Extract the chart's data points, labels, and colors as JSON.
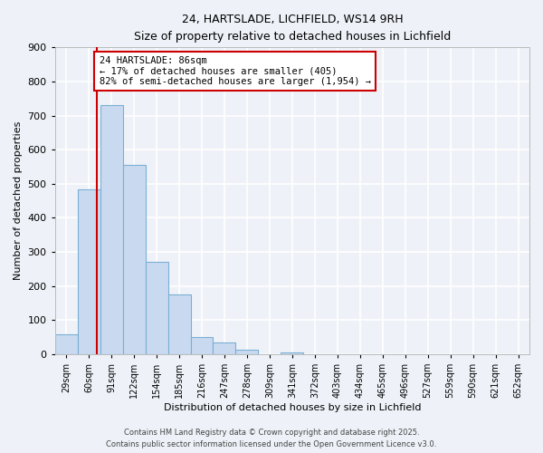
{
  "title": "24, HARTSLADE, LICHFIELD, WS14 9RH",
  "subtitle": "Size of property relative to detached houses in Lichfield",
  "xlabel": "Distribution of detached houses by size in Lichfield",
  "ylabel": "Number of detached properties",
  "bin_labels": [
    "29sqm",
    "60sqm",
    "91sqm",
    "122sqm",
    "154sqm",
    "185sqm",
    "216sqm",
    "247sqm",
    "278sqm",
    "309sqm",
    "341sqm",
    "372sqm",
    "403sqm",
    "434sqm",
    "465sqm",
    "496sqm",
    "527sqm",
    "559sqm",
    "590sqm",
    "621sqm",
    "652sqm"
  ],
  "bar_values": [
    57,
    484,
    730,
    554,
    270,
    176,
    50,
    35,
    14,
    0,
    5,
    0,
    0,
    0,
    0,
    0,
    0,
    0,
    0,
    0,
    0
  ],
  "bar_color": "#c9daf0",
  "bar_edge_color": "#7bafd4",
  "vline_color": "#cc0000",
  "vline_pos": 1.84,
  "annotation_text": "24 HARTSLADE: 86sqm\n← 17% of detached houses are smaller (405)\n82% of semi-detached houses are larger (1,954) →",
  "annotation_box_facecolor": "#ffffff",
  "annotation_box_edgecolor": "#cc0000",
  "ylim": [
    0,
    900
  ],
  "yticks": [
    0,
    100,
    200,
    300,
    400,
    500,
    600,
    700,
    800,
    900
  ],
  "footer_line1": "Contains HM Land Registry data © Crown copyright and database right 2025.",
  "footer_line2": "Contains public sector information licensed under the Open Government Licence v3.0.",
  "background_color": "#eef2f8",
  "plot_bg_color": "#eef2f8",
  "grid_color": "#ffffff"
}
